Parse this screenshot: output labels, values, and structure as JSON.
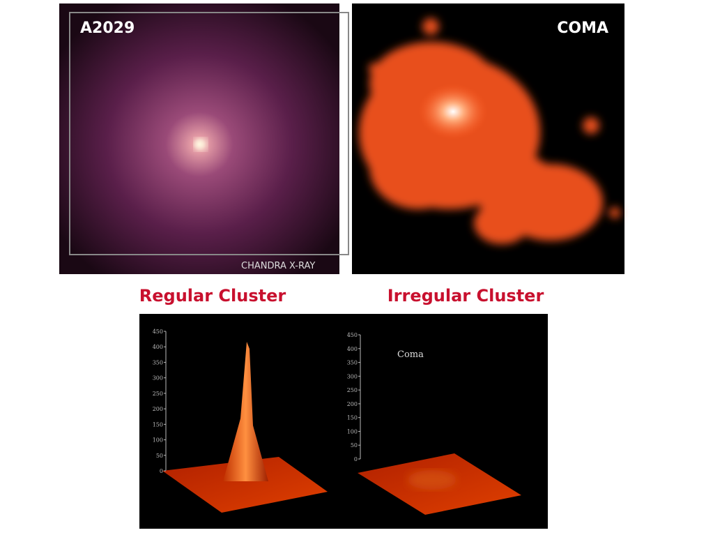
{
  "top_images": [
    {
      "label": "A2029",
      "credit": "CHANDRA X-RAY",
      "caption": "Regular Cluster"
    },
    {
      "label": "COMA",
      "caption": "Irregular Cluster"
    }
  ],
  "surface_plots": [
    {
      "yticks": [
        0,
        50,
        100,
        150,
        200,
        250,
        300,
        350,
        400,
        450
      ]
    },
    {
      "title": "Coma",
      "yticks": [
        0,
        50,
        100,
        150,
        200,
        250,
        300,
        350,
        400,
        450
      ]
    }
  ]
}
